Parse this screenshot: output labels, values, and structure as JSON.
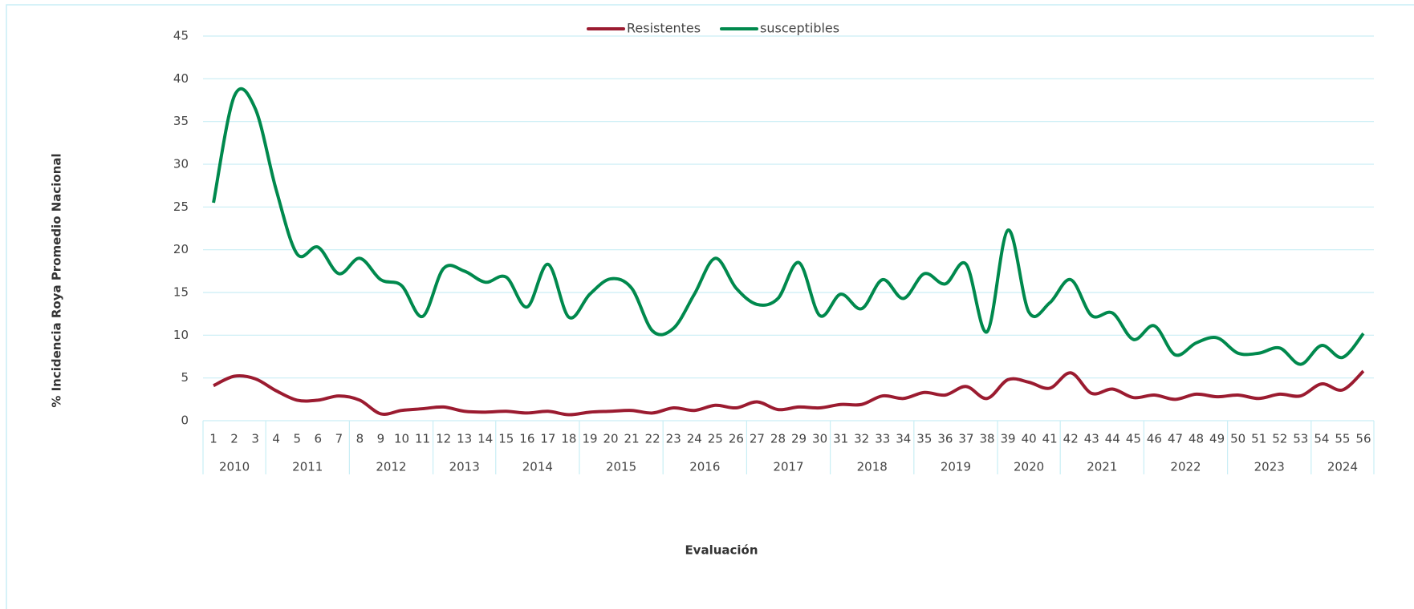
{
  "chart_data": {
    "type": "line",
    "y_label": "% Incidencia Roya Promedio Nacional",
    "x_label": "Evaluación",
    "categories": [
      "1",
      "2",
      "3",
      "4",
      "5",
      "6",
      "7",
      "8",
      "9",
      "10",
      "11",
      "12",
      "13",
      "14",
      "15",
      "16",
      "17",
      "18",
      "19",
      "20",
      "21",
      "22",
      "23",
      "24",
      "25",
      "26",
      "27",
      "28",
      "29",
      "30",
      "31",
      "32",
      "33",
      "34",
      "35",
      "36",
      "37",
      "38",
      "39",
      "40",
      "41",
      "42",
      "43",
      "44",
      "45",
      "46",
      "47",
      "48",
      "49",
      "50",
      "51",
      "52",
      "53",
      "54",
      "55",
      "56"
    ],
    "groups": [
      {
        "label": "2010",
        "count": 3
      },
      {
        "label": "2011",
        "count": 4
      },
      {
        "label": "2012",
        "count": 4
      },
      {
        "label": "2013",
        "count": 3
      },
      {
        "label": "2014",
        "count": 4
      },
      {
        "label": "2015",
        "count": 4
      },
      {
        "label": "2016",
        "count": 4
      },
      {
        "label": "2017",
        "count": 4
      },
      {
        "label": "2018",
        "count": 4
      },
      {
        "label": "2019",
        "count": 4
      },
      {
        "label": "2020",
        "count": 3
      },
      {
        "label": "2021",
        "count": 4
      },
      {
        "label": "2022",
        "count": 4
      },
      {
        "label": "2023",
        "count": 4
      },
      {
        "label": "2024",
        "count": 3
      }
    ],
    "series": [
      {
        "name": "Resistentes",
        "color": "#9b1b30",
        "values": [
          4.1,
          5.2,
          4.9,
          3.5,
          2.4,
          2.4,
          2.9,
          2.4,
          0.8,
          1.2,
          1.4,
          1.6,
          1.1,
          1.0,
          1.1,
          0.9,
          1.1,
          0.7,
          1.0,
          1.1,
          1.2,
          0.9,
          1.5,
          1.2,
          1.8,
          1.5,
          2.2,
          1.3,
          1.6,
          1.5,
          1.9,
          1.9,
          2.9,
          2.6,
          3.3,
          3.0,
          4.0,
          2.6,
          4.8,
          4.5,
          3.8,
          5.6,
          3.2,
          3.7,
          2.7,
          3.0,
          2.5,
          3.1,
          2.8,
          3.0,
          2.6,
          3.1,
          2.9,
          4.3,
          3.6,
          5.8
        ]
      },
      {
        "name": "susceptibles",
        "color": "#00894d",
        "values": [
          25.5,
          38,
          36.5,
          27,
          19.5,
          20.3,
          17.2,
          19,
          16.5,
          15.8,
          12.2,
          17.8,
          17.5,
          16.2,
          16.8,
          13.3,
          18.3,
          12.1,
          14.8,
          16.6,
          15.5,
          10.5,
          10.8,
          14.8,
          19,
          15.5,
          13.6,
          14.3,
          18.5,
          12.3,
          14.8,
          13.1,
          16.5,
          14.3,
          17.2,
          16,
          18.3,
          10.4,
          22.3,
          12.7,
          13.8,
          16.5,
          12.3,
          12.6,
          9.5,
          11.1,
          7.7,
          9.1,
          9.7,
          7.9,
          7.9,
          8.5,
          6.6,
          8.8,
          7.4,
          10.2
        ]
      }
    ],
    "ylim": [
      0,
      45
    ],
    "yticks": [
      0,
      5,
      10,
      15,
      20,
      25,
      30,
      35,
      40,
      45
    ],
    "grid": true,
    "legend": "top"
  }
}
